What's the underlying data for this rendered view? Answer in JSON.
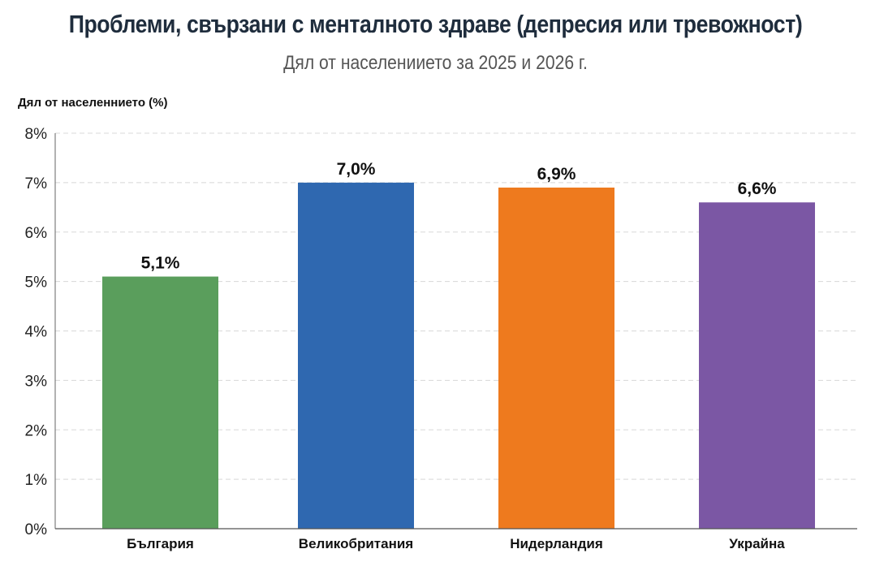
{
  "chart_data": {
    "type": "bar",
    "title": "Проблеми, свързани с менталното здраве (депресия или тревожност)",
    "subtitle": "Дял от населениието за 2025 и 2026 г.",
    "xlabel": "",
    "ylabel": "Дял от населеннието (%)",
    "ylim": [
      0,
      8
    ],
    "yticks": [
      0,
      1,
      2,
      3,
      4,
      5,
      6,
      7,
      8
    ],
    "ytick_labels": [
      "0%",
      "1%",
      "2%",
      "3%",
      "4%",
      "5%",
      "6%",
      "7%",
      "8%"
    ],
    "grid": true,
    "categories": [
      "България",
      "Великобритания",
      "Нидерландия",
      "Украйна"
    ],
    "values": [
      5.1,
      7.0,
      6.9,
      6.6
    ],
    "data_labels": [
      "5,1%",
      "7,0%",
      "6,9%",
      "6,6%"
    ],
    "colors": [
      "#5a9e5c",
      "#2f68b0",
      "#ee7a1e",
      "#7b57a4"
    ]
  }
}
